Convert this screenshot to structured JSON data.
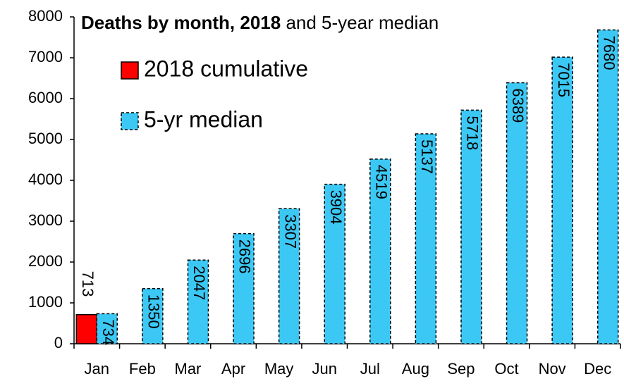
{
  "chart_data": {
    "type": "bar",
    "title": {
      "bold": "Deaths by month, 2018",
      "rest": "and 5-year median"
    },
    "categories": [
      "Jan",
      "Feb",
      "Mar",
      "Apr",
      "May",
      "Jun",
      "Jul",
      "Aug",
      "Sep",
      "Oct",
      "Nov",
      "Dec"
    ],
    "series": [
      {
        "name": "2018 cumulative",
        "color": "#ff0000",
        "values": [
          713,
          null,
          null,
          null,
          null,
          null,
          null,
          null,
          null,
          null,
          null,
          null
        ]
      },
      {
        "name": "5-yr median",
        "color": "#3cc8f4",
        "values": [
          734,
          1350,
          2047,
          2696,
          3307,
          3904,
          4519,
          5137,
          5718,
          6389,
          7015,
          7680
        ]
      }
    ],
    "ylim": [
      0,
      8000
    ],
    "yticks": [
      0,
      1000,
      2000,
      3000,
      4000,
      5000,
      6000,
      7000,
      8000
    ],
    "grid": false
  }
}
